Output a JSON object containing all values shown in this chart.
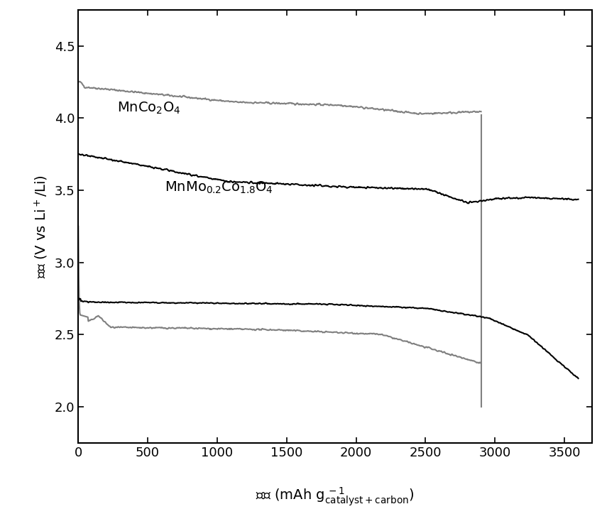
{
  "xlim": [
    0,
    3700
  ],
  "ylim": [
    1.75,
    4.75
  ],
  "xticks": [
    0,
    500,
    1000,
    1500,
    2000,
    2500,
    3000,
    3500
  ],
  "yticks": [
    2.0,
    2.5,
    3.0,
    3.5,
    4.0,
    4.5
  ],
  "gray_color": "#808080",
  "black_color": "#000000",
  "linewidth": 1.5,
  "annotation_fontsize": 14,
  "tick_fontsize": 13,
  "label_fontsize": 14
}
